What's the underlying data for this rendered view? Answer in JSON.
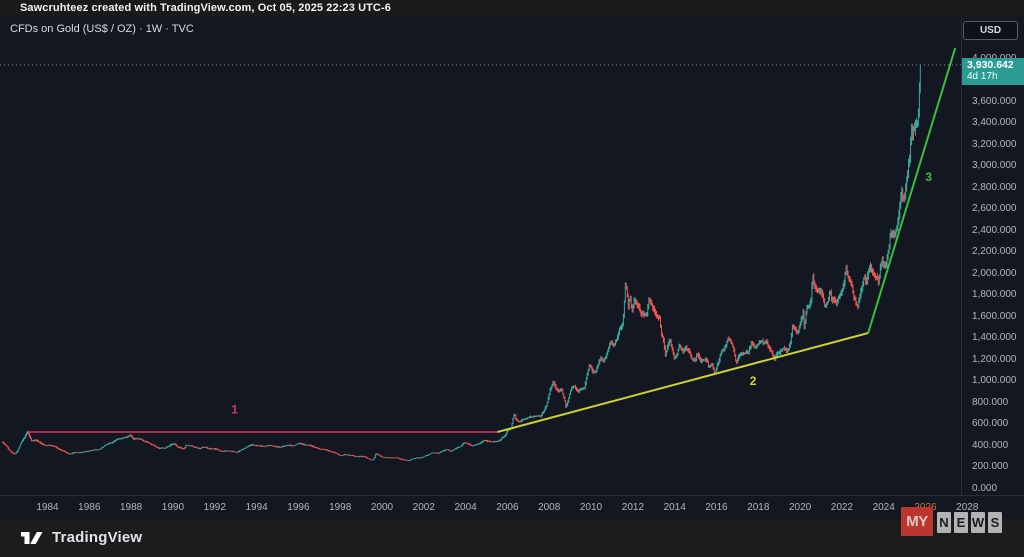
{
  "header": {
    "attribution": "Sawcruhteez created with TradingView.com, Oct 05, 2025 22:23 UTC-6"
  },
  "legend": {
    "symbol_title": "CFDs on Gold (US$ / OZ) · 1W · TVC"
  },
  "price_axis": {
    "currency_button": "USD"
  },
  "last_price_badge": {
    "price": "3,930.642",
    "countdown": "4d 17h",
    "bg_color": "#2a9c94"
  },
  "footer": {
    "brand": "TradingView"
  },
  "watermark": {
    "part1": "MY",
    "letters": [
      "N",
      "E",
      "W",
      "S"
    ]
  },
  "chart_data": {
    "type": "candlestick",
    "title": "CFDs on Gold (US$ / OZ)",
    "interval": "1W",
    "exchange": "TVC",
    "currency": "USD",
    "last_price": 3930.642,
    "countdown": "4d 17h",
    "grid": false,
    "xlim": [
      1981.727,
      2027.697
    ],
    "ylim": [
      -70,
      4377
    ],
    "up_color": "#3aa79b",
    "down_color": "#ef5350",
    "last_price_line_color": "#7a8f8f",
    "y_ticks": [
      4000,
      3800,
      3600,
      3400,
      3200,
      3000,
      2800,
      2600,
      2400,
      2200,
      2000,
      1800,
      1600,
      1400,
      1200,
      1000,
      800,
      600,
      400,
      200,
      0
    ],
    "x_ticks": [
      {
        "year": 1984,
        "label": "1984"
      },
      {
        "year": 1986,
        "label": "1986"
      },
      {
        "year": 1988,
        "label": "1988"
      },
      {
        "year": 1990,
        "label": "1990"
      },
      {
        "year": 1992,
        "label": "1992"
      },
      {
        "year": 1994,
        "label": "1994"
      },
      {
        "year": 1996,
        "label": "1996"
      },
      {
        "year": 1998,
        "label": "1998"
      },
      {
        "year": 2000,
        "label": "2000"
      },
      {
        "year": 2002,
        "label": "2002"
      },
      {
        "year": 2004,
        "label": "2004"
      },
      {
        "year": 2006,
        "label": "2006"
      },
      {
        "year": 2008,
        "label": "2008"
      },
      {
        "year": 2010,
        "label": "2010"
      },
      {
        "year": 2012,
        "label": "2012"
      },
      {
        "year": 2014,
        "label": "2014"
      },
      {
        "year": 2016,
        "label": "2016"
      },
      {
        "year": 2018,
        "label": "2018"
      },
      {
        "year": 2020,
        "label": "2020"
      },
      {
        "year": 2022,
        "label": "2022"
      },
      {
        "year": 2024,
        "label": "2024"
      },
      {
        "year": 2026,
        "label": "2026",
        "accent": true
      },
      {
        "year": 2028,
        "label": "2028"
      }
    ],
    "trend_lines": [
      {
        "name": "wave-1-line",
        "color": "#d6385c",
        "width": 1.5,
        "from": [
          1983.07,
          516
        ],
        "to": [
          2005.52,
          516
        ]
      },
      {
        "name": "wave-2-line",
        "color": "#cdd232",
        "width": 2,
        "from": [
          2005.52,
          516
        ],
        "to": [
          2023.26,
          1437
        ]
      },
      {
        "name": "wave-3-line",
        "color": "#3cbe3c",
        "width": 2,
        "from": [
          2023.26,
          1437
        ],
        "to": [
          2027.42,
          4088
        ]
      }
    ],
    "wave_labels": [
      {
        "text": "1",
        "color": "#d6385c",
        "at": [
          1992.95,
          686
        ]
      },
      {
        "text": "2",
        "color": "#d8d822",
        "at": [
          2017.75,
          953
        ]
      },
      {
        "text": "3",
        "color": "#3cbe3c",
        "at": [
          2026.15,
          2851
        ]
      }
    ],
    "series_anchors": [
      [
        1981.85,
        430
      ],
      [
        1982.0,
        400
      ],
      [
        1982.2,
        345
      ],
      [
        1982.45,
        305
      ],
      [
        1982.6,
        340
      ],
      [
        1982.75,
        410
      ],
      [
        1982.9,
        450
      ],
      [
        1983.07,
        505
      ],
      [
        1983.25,
        425
      ],
      [
        1983.45,
        435
      ],
      [
        1983.65,
        415
      ],
      [
        1983.9,
        385
      ],
      [
        1984.1,
        390
      ],
      [
        1984.35,
        378
      ],
      [
        1984.6,
        345
      ],
      [
        1984.85,
        325
      ],
      [
        1985.1,
        302
      ],
      [
        1985.35,
        320
      ],
      [
        1985.6,
        315
      ],
      [
        1985.85,
        328
      ],
      [
        1986.1,
        340
      ],
      [
        1986.35,
        342
      ],
      [
        1986.6,
        355
      ],
      [
        1986.85,
        390
      ],
      [
        1987.1,
        405
      ],
      [
        1987.35,
        445
      ],
      [
        1987.6,
        450
      ],
      [
        1987.8,
        465
      ],
      [
        1987.97,
        495
      ],
      [
        1988.15,
        450
      ],
      [
        1988.4,
        450
      ],
      [
        1988.65,
        435
      ],
      [
        1988.9,
        415
      ],
      [
        1989.15,
        390
      ],
      [
        1989.4,
        370
      ],
      [
        1989.65,
        365
      ],
      [
        1989.9,
        402
      ],
      [
        1990.1,
        412
      ],
      [
        1990.3,
        372
      ],
      [
        1990.55,
        358
      ],
      [
        1990.65,
        392
      ],
      [
        1990.85,
        380
      ],
      [
        1991.1,
        368
      ],
      [
        1991.3,
        356
      ],
      [
        1991.55,
        368
      ],
      [
        1991.8,
        352
      ],
      [
        1992.05,
        355
      ],
      [
        1992.3,
        338
      ],
      [
        1992.6,
        343
      ],
      [
        1992.9,
        333
      ],
      [
        1993.15,
        328
      ],
      [
        1993.4,
        358
      ],
      [
        1993.6,
        380
      ],
      [
        1993.8,
        390
      ],
      [
        1994.0,
        382
      ],
      [
        1994.3,
        378
      ],
      [
        1994.6,
        388
      ],
      [
        1994.9,
        383
      ],
      [
        1995.2,
        377
      ],
      [
        1995.5,
        388
      ],
      [
        1995.8,
        384
      ],
      [
        1996.05,
        405
      ],
      [
        1996.3,
        396
      ],
      [
        1996.6,
        385
      ],
      [
        1996.9,
        370
      ],
      [
        1997.2,
        348
      ],
      [
        1997.5,
        332
      ],
      [
        1997.8,
        315
      ],
      [
        1998.0,
        292
      ],
      [
        1998.25,
        302
      ],
      [
        1998.5,
        293
      ],
      [
        1998.75,
        286
      ],
      [
        1999.0,
        288
      ],
      [
        1999.2,
        283
      ],
      [
        1999.45,
        260
      ],
      [
        1999.6,
        257
      ],
      [
        1999.73,
        318
      ],
      [
        1999.85,
        300
      ],
      [
        2000.0,
        288
      ],
      [
        2000.2,
        283
      ],
      [
        2000.45,
        278
      ],
      [
        2000.7,
        273
      ],
      [
        2000.95,
        268
      ],
      [
        2001.2,
        260
      ],
      [
        2001.3,
        257
      ],
      [
        2001.5,
        272
      ],
      [
        2001.7,
        278
      ],
      [
        2001.95,
        276
      ],
      [
        2002.2,
        300
      ],
      [
        2002.45,
        318
      ],
      [
        2002.7,
        312
      ],
      [
        2002.95,
        332
      ],
      [
        2003.1,
        348
      ],
      [
        2003.3,
        332
      ],
      [
        2003.55,
        355
      ],
      [
        2003.8,
        378
      ],
      [
        2003.95,
        408
      ],
      [
        2004.1,
        402
      ],
      [
        2004.3,
        390
      ],
      [
        2004.5,
        392
      ],
      [
        2004.7,
        402
      ],
      [
        2004.9,
        438
      ],
      [
        2005.1,
        424
      ],
      [
        2005.3,
        428
      ],
      [
        2005.5,
        432
      ],
      [
        2005.7,
        448
      ],
      [
        2005.9,
        478
      ],
      [
        2006.05,
        540
      ],
      [
        2006.2,
        555
      ],
      [
        2006.35,
        700
      ],
      [
        2006.45,
        625
      ],
      [
        2006.6,
        600
      ],
      [
        2006.75,
        625
      ],
      [
        2006.9,
        628
      ],
      [
        2007.05,
        650
      ],
      [
        2007.2,
        662
      ],
      [
        2007.4,
        655
      ],
      [
        2007.6,
        665
      ],
      [
        2007.75,
        715
      ],
      [
        2007.9,
        790
      ],
      [
        2008.05,
        890
      ],
      [
        2008.2,
        975
      ],
      [
        2008.35,
        910
      ],
      [
        2008.5,
        885
      ],
      [
        2008.6,
        930
      ],
      [
        2008.75,
        820
      ],
      [
        2008.82,
        735
      ],
      [
        2008.95,
        815
      ],
      [
        2009.1,
        905
      ],
      [
        2009.25,
        930
      ],
      [
        2009.4,
        895
      ],
      [
        2009.55,
        935
      ],
      [
        2009.7,
        955
      ],
      [
        2009.85,
        1095
      ],
      [
        2009.95,
        1175
      ],
      [
        2010.1,
        1105
      ],
      [
        2010.25,
        1110
      ],
      [
        2010.4,
        1200
      ],
      [
        2010.5,
        1240
      ],
      [
        2010.65,
        1195
      ],
      [
        2010.8,
        1290
      ],
      [
        2010.95,
        1385
      ],
      [
        2011.1,
        1360
      ],
      [
        2011.25,
        1420
      ],
      [
        2011.4,
        1500
      ],
      [
        2011.55,
        1540
      ],
      [
        2011.67,
        1880
      ],
      [
        2011.73,
        1810
      ],
      [
        2011.8,
        1650
      ],
      [
        2011.88,
        1750
      ],
      [
        2011.97,
        1590
      ],
      [
        2012.1,
        1720
      ],
      [
        2012.25,
        1680
      ],
      [
        2012.4,
        1600
      ],
      [
        2012.55,
        1590
      ],
      [
        2012.7,
        1620
      ],
      [
        2012.78,
        1770
      ],
      [
        2012.9,
        1715
      ],
      [
        2013.05,
        1670
      ],
      [
        2013.2,
        1600
      ],
      [
        2013.3,
        1560
      ],
      [
        2013.4,
        1400
      ],
      [
        2013.5,
        1370
      ],
      [
        2013.57,
        1230
      ],
      [
        2013.7,
        1320
      ],
      [
        2013.8,
        1370
      ],
      [
        2013.9,
        1290
      ],
      [
        2014.0,
        1210
      ],
      [
        2014.15,
        1260
      ],
      [
        2014.25,
        1340
      ],
      [
        2014.4,
        1290
      ],
      [
        2014.55,
        1310
      ],
      [
        2014.7,
        1290
      ],
      [
        2014.85,
        1210
      ],
      [
        2015.0,
        1190
      ],
      [
        2015.1,
        1265
      ],
      [
        2015.25,
        1190
      ],
      [
        2015.4,
        1185
      ],
      [
        2015.55,
        1160
      ],
      [
        2015.65,
        1095
      ],
      [
        2015.8,
        1135
      ],
      [
        2015.95,
        1065
      ],
      [
        2016.1,
        1150
      ],
      [
        2016.25,
        1240
      ],
      [
        2016.4,
        1260
      ],
      [
        2016.55,
        1330
      ],
      [
        2016.6,
        1355
      ],
      [
        2016.75,
        1320
      ],
      [
        2016.85,
        1250
      ],
      [
        2016.97,
        1135
      ],
      [
        2017.1,
        1200
      ],
      [
        2017.25,
        1245
      ],
      [
        2017.4,
        1260
      ],
      [
        2017.55,
        1240
      ],
      [
        2017.7,
        1330
      ],
      [
        2017.85,
        1280
      ],
      [
        2017.97,
        1300
      ],
      [
        2018.1,
        1335
      ],
      [
        2018.25,
        1320
      ],
      [
        2018.4,
        1335
      ],
      [
        2018.55,
        1280
      ],
      [
        2018.7,
        1225
      ],
      [
        2018.8,
        1185
      ],
      [
        2018.95,
        1250
      ],
      [
        2019.1,
        1290
      ],
      [
        2019.25,
        1300
      ],
      [
        2019.4,
        1275
      ],
      [
        2019.55,
        1350
      ],
      [
        2019.65,
        1510
      ],
      [
        2019.8,
        1495
      ],
      [
        2019.9,
        1460
      ],
      [
        2020.0,
        1520
      ],
      [
        2020.1,
        1575
      ],
      [
        2020.17,
        1640
      ],
      [
        2020.22,
        1480
      ],
      [
        2020.35,
        1700
      ],
      [
        2020.45,
        1730
      ],
      [
        2020.55,
        1800
      ],
      [
        2020.62,
        2050
      ],
      [
        2020.7,
        1930
      ],
      [
        2020.8,
        1905
      ],
      [
        2020.9,
        1870
      ],
      [
        2021.0,
        1890
      ],
      [
        2021.1,
        1840
      ],
      [
        2021.2,
        1735
      ],
      [
        2021.35,
        1780
      ],
      [
        2021.45,
        1880
      ],
      [
        2021.55,
        1790
      ],
      [
        2021.65,
        1805
      ],
      [
        2021.75,
        1750
      ],
      [
        2021.85,
        1790
      ],
      [
        2021.95,
        1800
      ],
      [
        2022.05,
        1830
      ],
      [
        2022.15,
        1870
      ],
      [
        2022.2,
        2040
      ],
      [
        2022.3,
        1945
      ],
      [
        2022.4,
        1900
      ],
      [
        2022.5,
        1840
      ],
      [
        2022.6,
        1740
      ],
      [
        2022.7,
        1700
      ],
      [
        2022.78,
        1640
      ],
      [
        2022.9,
        1755
      ],
      [
        2023.0,
        1830
      ],
      [
        2023.1,
        1920
      ],
      [
        2023.2,
        1850
      ],
      [
        2023.3,
        1990
      ],
      [
        2023.38,
        2030
      ],
      [
        2023.5,
        1960
      ],
      [
        2023.6,
        1920
      ],
      [
        2023.7,
        1925
      ],
      [
        2023.78,
        1840
      ],
      [
        2023.85,
        1990
      ],
      [
        2023.95,
        2055
      ],
      [
        2024.05,
        2030
      ],
      [
        2024.15,
        2040
      ],
      [
        2024.25,
        2180
      ],
      [
        2024.35,
        2340
      ],
      [
        2024.45,
        2320
      ],
      [
        2024.55,
        2330
      ],
      [
        2024.65,
        2400
      ],
      [
        2024.75,
        2510
      ],
      [
        2024.82,
        2660
      ],
      [
        2024.88,
        2740
      ],
      [
        2024.95,
        2630
      ],
      [
        2025.02,
        2650
      ],
      [
        2025.1,
        2760
      ],
      [
        2025.18,
        2900
      ],
      [
        2025.25,
        3020
      ],
      [
        2025.3,
        3120
      ],
      [
        2025.35,
        3300
      ],
      [
        2025.4,
        3230
      ],
      [
        2025.45,
        3320
      ],
      [
        2025.5,
        3290
      ],
      [
        2025.55,
        3360
      ],
      [
        2025.6,
        3330
      ],
      [
        2025.65,
        3370
      ],
      [
        2025.7,
        3480
      ],
      [
        2025.73,
        3640
      ],
      [
        2025.76,
        3860
      ],
      [
        2025.775,
        3930.642
      ]
    ]
  }
}
